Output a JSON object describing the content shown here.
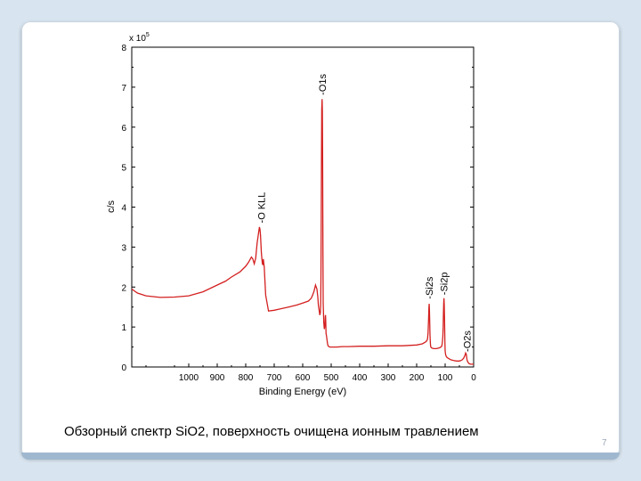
{
  "slide": {
    "caption": "Обзорный спектр SiO2, поверхность очищена ионным травлением",
    "page_number": "7"
  },
  "chart_data": {
    "type": "line",
    "title": "",
    "xlabel": "Binding Energy (eV)",
    "ylabel": "c/s",
    "y_multiplier": "x 10",
    "y_multiplier_exp": "5",
    "xlim": [
      1200,
      0
    ],
    "ylim": [
      0,
      8
    ],
    "x_reversed": true,
    "x_ticks": [
      1000,
      900,
      800,
      700,
      600,
      500,
      400,
      300,
      200,
      100,
      0
    ],
    "y_ticks": [
      0,
      1,
      2,
      3,
      4,
      5,
      6,
      7,
      8
    ],
    "grid": false,
    "line_color": "#d42020",
    "series": [
      {
        "x": [
          1200,
          1180,
          1150,
          1100,
          1050,
          1000,
          950,
          900,
          870,
          850,
          820,
          800,
          790,
          780,
          775,
          770,
          765,
          760,
          755,
          752,
          750,
          748,
          745,
          742,
          740,
          738,
          735,
          730,
          720,
          700,
          680,
          650,
          620,
          600,
          580,
          570,
          565,
          560,
          555,
          550,
          547,
          545,
          542,
          540,
          538,
          537,
          536,
          535,
          534,
          533,
          532,
          531,
          530,
          529,
          528,
          526,
          524,
          522,
          521,
          520,
          519,
          518,
          516,
          515,
          514,
          513,
          512,
          510,
          505,
          500,
          490,
          480,
          460,
          440,
          400,
          350,
          300,
          250,
          200,
          180,
          170,
          165,
          162,
          160,
          158,
          157,
          156,
          155,
          154,
          153,
          152,
          151,
          150,
          148,
          145,
          140,
          135,
          130,
          125,
          120,
          115,
          112,
          110,
          108,
          107,
          106,
          105,
          104,
          103,
          102,
          101,
          100,
          98,
          95,
          90,
          80,
          70,
          60,
          50,
          45,
          40,
          35,
          30,
          28,
          26,
          25,
          24,
          23,
          22,
          20,
          18,
          15,
          10,
          5,
          0
        ],
        "values": [
          1.95,
          1.85,
          1.78,
          1.74,
          1.75,
          1.78,
          1.88,
          2.05,
          2.15,
          2.25,
          2.38,
          2.52,
          2.62,
          2.75,
          2.7,
          2.58,
          2.72,
          3.1,
          3.35,
          3.5,
          3.45,
          3.3,
          2.85,
          2.6,
          2.55,
          2.7,
          2.5,
          1.8,
          1.4,
          1.42,
          1.45,
          1.5,
          1.55,
          1.6,
          1.65,
          1.72,
          1.8,
          1.9,
          2.05,
          1.95,
          1.75,
          1.55,
          1.4,
          1.3,
          1.35,
          1.55,
          2.2,
          3.5,
          5.2,
          6.45,
          6.7,
          6.4,
          5.2,
          3.1,
          1.6,
          1.1,
          0.95,
          1.05,
          1.25,
          1.3,
          1.15,
          0.85,
          0.75,
          0.7,
          0.65,
          0.6,
          0.55,
          0.52,
          0.5,
          0.5,
          0.5,
          0.5,
          0.51,
          0.51,
          0.52,
          0.52,
          0.53,
          0.53,
          0.55,
          0.58,
          0.62,
          0.65,
          0.7,
          0.85,
          1.2,
          1.5,
          1.58,
          1.4,
          1.1,
          0.8,
          0.6,
          0.52,
          0.5,
          0.48,
          0.47,
          0.46,
          0.46,
          0.46,
          0.47,
          0.48,
          0.5,
          0.52,
          0.6,
          0.75,
          1.0,
          1.35,
          1.6,
          1.72,
          1.55,
          1.1,
          0.65,
          0.4,
          0.3,
          0.25,
          0.22,
          0.18,
          0.16,
          0.15,
          0.15,
          0.16,
          0.18,
          0.22,
          0.3,
          0.35,
          0.32,
          0.28,
          0.22,
          0.18,
          0.15,
          0.12,
          0.1,
          0.08,
          0.07,
          0.07,
          0.07
        ]
      }
    ],
    "peak_labels": [
      {
        "text": "-O KLL",
        "x": 745,
        "y": 3.6
      },
      {
        "text": "-O1s",
        "x": 532,
        "y": 6.8
      },
      {
        "text": "-Si2s",
        "x": 157,
        "y": 1.7
      },
      {
        "text": "-Si2p",
        "x": 104,
        "y": 1.8
      },
      {
        "text": "-O2s",
        "x": 24,
        "y": 0.38
      }
    ]
  }
}
